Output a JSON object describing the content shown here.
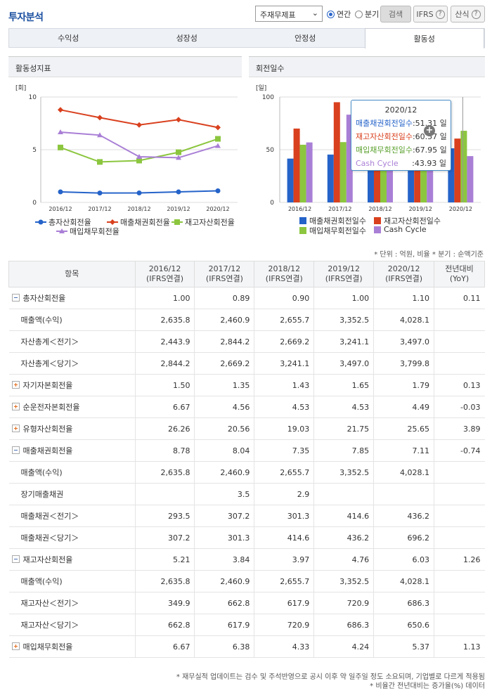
{
  "header": {
    "title": "투자분석",
    "select_value": "주재무제표",
    "radio_annual": "연간",
    "radio_quarter": "분기",
    "search_label": "검색",
    "ifrs_label": "IFRS",
    "formula_label": "산식"
  },
  "tabs": [
    "수익성",
    "성장성",
    "안정성",
    "활동성"
  ],
  "active_tab": 3,
  "left_panel": {
    "title": "활동성지표",
    "unit": "[회]"
  },
  "right_panel": {
    "title": "회전일수",
    "unit": "[일]"
  },
  "chart_data": [
    {
      "type": "line",
      "categories": [
        "2016/12",
        "2017/12",
        "2018/12",
        "2019/12",
        "2020/12"
      ],
      "ylim": [
        0,
        10
      ],
      "yticks": [
        "0",
        "5",
        "10"
      ],
      "grid": true,
      "legend_position": "bottom",
      "series": [
        {
          "name": "총자산회전율",
          "color": "#2563c9",
          "marker": "circle",
          "values": [
            1.0,
            0.89,
            0.9,
            1.0,
            1.1
          ]
        },
        {
          "name": "매출채권회전율",
          "color": "#d9401e",
          "marker": "diamond",
          "values": [
            8.78,
            8.04,
            7.35,
            7.85,
            7.11
          ]
        },
        {
          "name": "재고자산회전율",
          "color": "#8cc63f",
          "marker": "square",
          "values": [
            5.21,
            3.84,
            3.97,
            4.76,
            6.03
          ]
        },
        {
          "name": "매입채무회전율",
          "color": "#a97fd6",
          "marker": "triangle",
          "values": [
            6.67,
            6.38,
            4.33,
            4.24,
            5.37
          ]
        }
      ]
    },
    {
      "type": "bar",
      "categories": [
        "2016/12",
        "2017/12",
        "2018/12",
        "2019/12",
        "2020/12"
      ],
      "ylim": [
        0,
        100
      ],
      "yticks": [
        "0",
        "50",
        "100"
      ],
      "grid": true,
      "legend_position": "bottom",
      "series": [
        {
          "name": "매출채권회전일수",
          "color": "#2563c9",
          "values": [
            41.57,
            45.4,
            49.66,
            46.5,
            51.31
          ]
        },
        {
          "name": "재고자산회전일수",
          "color": "#d9401e",
          "values": [
            70.06,
            95.05,
            91.94,
            76.68,
            60.57
          ]
        },
        {
          "name": "매입채무회전일수",
          "color": "#8cc63f",
          "values": [
            54.72,
            57.21,
            84.3,
            86.08,
            67.95
          ]
        },
        {
          "name": "Cash Cycle",
          "color": "#a97fd6",
          "values": [
            56.91,
            83.24,
            57.3,
            37.1,
            43.93
          ]
        }
      ],
      "tooltip": {
        "title": "2020/12",
        "rows": [
          {
            "label": "매출채권회전일수",
            "value": ":51.31 일",
            "color": "#2563c9"
          },
          {
            "label": "재고자산회전일수",
            "value": ":60.57 일",
            "color": "#d9401e"
          },
          {
            "label": "매입채무회전일수",
            "value": ":67.95 일",
            "color": "#5aa02c"
          },
          {
            "label": "Cash Cycle",
            "value": ":43.93 일",
            "color": "#a97fd6"
          }
        ]
      }
    }
  ],
  "note_top": "* 단위 : 억원, 비율   * 분기 : 순액기준",
  "table": {
    "headers": [
      {
        "l1": "항목",
        "l2": ""
      },
      {
        "l1": "2016/12",
        "l2": "(IFRS연결)"
      },
      {
        "l1": "2017/12",
        "l2": "(IFRS연결)"
      },
      {
        "l1": "2018/12",
        "l2": "(IFRS연결)"
      },
      {
        "l1": "2019/12",
        "l2": "(IFRS연결)"
      },
      {
        "l1": "2020/12",
        "l2": "(IFRS연결)"
      },
      {
        "l1": "전년대비",
        "l2": "(YoY)"
      }
    ],
    "rows": [
      {
        "toggle": "minus",
        "label": "총자산회전율",
        "cells": [
          "1.00",
          "0.89",
          "0.90",
          "1.00",
          "1.10",
          "0.11"
        ]
      },
      {
        "toggle": "",
        "label": "매출액(수익)",
        "cells": [
          "2,635.8",
          "2,460.9",
          "2,655.7",
          "3,352.5",
          "4,028.1",
          ""
        ]
      },
      {
        "toggle": "",
        "label": "자산총계＜전기＞",
        "cells": [
          "2,443.9",
          "2,844.2",
          "2,669.2",
          "3,241.1",
          "3,497.0",
          ""
        ]
      },
      {
        "toggle": "",
        "label": "자산총계＜당기＞",
        "cells": [
          "2,844.2",
          "2,669.2",
          "3,241.1",
          "3,497.0",
          "3,799.8",
          ""
        ]
      },
      {
        "toggle": "plus",
        "label": "자기자본회전율",
        "cells": [
          "1.50",
          "1.35",
          "1.43",
          "1.65",
          "1.79",
          "0.13"
        ]
      },
      {
        "toggle": "plus",
        "label": "순운전자본회전율",
        "cells": [
          "6.67",
          "4.56",
          "4.53",
          "4.53",
          "4.49",
          "-0.03"
        ]
      },
      {
        "toggle": "plus",
        "label": "유형자산회전율",
        "cells": [
          "26.26",
          "20.56",
          "19.03",
          "21.75",
          "25.65",
          "3.89"
        ]
      },
      {
        "toggle": "minus",
        "label": "매출채권회전율",
        "cells": [
          "8.78",
          "8.04",
          "7.35",
          "7.85",
          "7.11",
          "-0.74"
        ]
      },
      {
        "toggle": "",
        "label": "매출액(수익)",
        "cells": [
          "2,635.8",
          "2,460.9",
          "2,655.7",
          "3,352.5",
          "4,028.1",
          ""
        ]
      },
      {
        "toggle": "",
        "label": "장기매출채권",
        "cells": [
          "",
          "3.5",
          "2.9",
          "",
          "",
          ""
        ]
      },
      {
        "toggle": "",
        "label": "매출채권＜전기＞",
        "cells": [
          "293.5",
          "307.2",
          "301.3",
          "414.6",
          "436.2",
          ""
        ]
      },
      {
        "toggle": "",
        "label": "매출채권＜당기＞",
        "cells": [
          "307.2",
          "301.3",
          "414.6",
          "436.2",
          "696.2",
          ""
        ]
      },
      {
        "toggle": "minus",
        "label": "재고자산회전율",
        "cells": [
          "5.21",
          "3.84",
          "3.97",
          "4.76",
          "6.03",
          "1.26"
        ]
      },
      {
        "toggle": "",
        "label": "매출액(수익)",
        "cells": [
          "2,635.8",
          "2,460.9",
          "2,655.7",
          "3,352.5",
          "4,028.1",
          ""
        ]
      },
      {
        "toggle": "",
        "label": "재고자산＜전기＞",
        "cells": [
          "349.9",
          "662.8",
          "617.9",
          "720.9",
          "686.3",
          ""
        ]
      },
      {
        "toggle": "",
        "label": "재고자산＜당기＞",
        "cells": [
          "662.8",
          "617.9",
          "720.9",
          "686.3",
          "650.6",
          ""
        ]
      },
      {
        "toggle": "plus",
        "label": "매입채무회전율",
        "cells": [
          "6.67",
          "6.38",
          "4.33",
          "4.24",
          "5.37",
          "1.13"
        ]
      }
    ]
  },
  "footer": {
    "line1": "* 재무실적 업데이트는 검수 및 주석반영으로 공시 이후 약 일주일 정도 소요되며, 기업별로 다르게 적용됨",
    "line2": "* 비율간 전년대비는 증가율(%) 데이터"
  }
}
